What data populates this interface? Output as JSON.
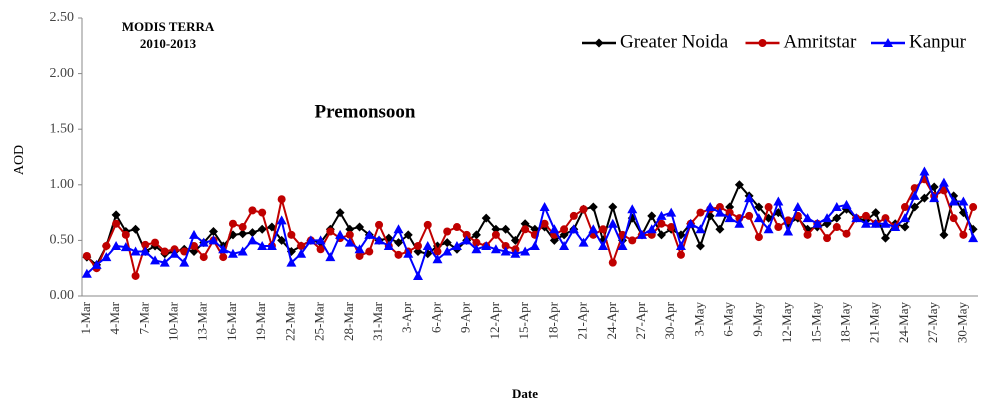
{
  "chart_data": {
    "type": "line",
    "title": "MODIS TERRA",
    "subtitle": "2010-2013",
    "annotation": "Premonsoon",
    "x_label": "Date",
    "y_label": "AOD",
    "legend": "top-right",
    "grid": false,
    "ylim": [
      0,
      2.5
    ],
    "yticks": [
      {
        "value": 0,
        "label": "0.00"
      },
      {
        "value": 0.5,
        "label": "0.50"
      },
      {
        "value": 1,
        "label": "1.00"
      },
      {
        "value": 1.5,
        "label": "1.50"
      },
      {
        "value": 2,
        "label": "2.00"
      },
      {
        "value": 2.5,
        "label": "2.50"
      }
    ],
    "categories": [
      "1-Mar",
      null,
      null,
      "4-Mar",
      null,
      null,
      "7-Mar",
      null,
      null,
      "10-Mar",
      null,
      null,
      "13-Mar",
      null,
      null,
      "16-Mar",
      null,
      null,
      "19-Mar",
      null,
      null,
      "22-Mar",
      null,
      null,
      "25-Mar",
      null,
      null,
      "28-Mar",
      null,
      null,
      "31-Mar",
      null,
      null,
      "3-Apr",
      null,
      null,
      "6-Apr",
      null,
      null,
      "9-Apr",
      null,
      null,
      "12-Apr",
      null,
      null,
      "15-Apr",
      null,
      null,
      "18-Apr",
      null,
      null,
      "21-Apr",
      null,
      null,
      "24-Apr",
      null,
      null,
      "27-Apr",
      null,
      null,
      "30-Apr",
      null,
      null,
      "3-May",
      null,
      null,
      "6-May",
      null,
      null,
      "9-May",
      null,
      null,
      "12-May",
      null,
      null,
      "15-May",
      null,
      null,
      "18-May",
      null,
      null,
      "21-May",
      null,
      null,
      "24-May",
      null,
      null,
      "27-May",
      null,
      null,
      "30-May",
      null
    ],
    "series": [
      {
        "name": "Greater Noida",
        "color": "#000000",
        "marker": "diamond",
        "values": [
          0.35,
          0.28,
          0.45,
          0.73,
          0.58,
          0.6,
          0.4,
          0.45,
          0.38,
          0.4,
          0.42,
          0.4,
          0.48,
          0.58,
          0.45,
          0.55,
          0.56,
          0.57,
          0.6,
          0.62,
          0.5,
          0.4,
          0.45,
          0.5,
          0.48,
          0.6,
          0.75,
          0.6,
          0.62,
          0.55,
          0.5,
          0.52,
          0.48,
          0.55,
          0.4,
          0.38,
          0.45,
          0.48,
          0.42,
          0.5,
          0.55,
          0.7,
          0.6,
          0.6,
          0.5,
          0.65,
          0.6,
          0.62,
          0.5,
          0.55,
          0.6,
          0.78,
          0.8,
          0.5,
          0.8,
          0.5,
          0.7,
          0.55,
          0.72,
          0.55,
          0.6,
          0.55,
          0.65,
          0.45,
          0.72,
          0.6,
          0.8,
          1.0,
          0.9,
          0.8,
          0.7,
          0.75,
          0.65,
          0.7,
          0.6,
          0.62,
          0.65,
          0.7,
          0.78,
          0.7,
          0.68,
          0.75,
          0.52,
          0.65,
          0.62,
          0.8,
          0.88,
          0.98,
          0.55,
          0.9,
          0.75,
          0.6
        ]
      },
      {
        "name": "Amritstar",
        "color": "#c00000",
        "marker": "circle",
        "values": [
          0.36,
          0.25,
          0.45,
          0.65,
          0.55,
          0.18,
          0.46,
          0.48,
          0.4,
          0.42,
          0.4,
          0.45,
          0.35,
          0.5,
          0.35,
          0.65,
          0.62,
          0.77,
          0.75,
          0.45,
          0.87,
          0.55,
          0.45,
          0.5,
          0.42,
          0.58,
          0.52,
          0.55,
          0.36,
          0.4,
          0.64,
          0.45,
          0.37,
          0.4,
          0.45,
          0.64,
          0.4,
          0.58,
          0.62,
          0.55,
          0.48,
          0.45,
          0.55,
          0.45,
          0.42,
          0.6,
          0.55,
          0.65,
          0.55,
          0.6,
          0.72,
          0.78,
          0.55,
          0.6,
          0.3,
          0.55,
          0.5,
          0.55,
          0.55,
          0.65,
          0.62,
          0.37,
          0.65,
          0.75,
          0.78,
          0.8,
          0.75,
          0.7,
          0.72,
          0.53,
          0.8,
          0.62,
          0.68,
          0.72,
          0.55,
          0.65,
          0.52,
          0.62,
          0.56,
          0.7,
          0.72,
          0.65,
          0.7,
          0.62,
          0.8,
          0.97,
          1.05,
          0.9,
          0.95,
          0.7,
          0.55,
          0.8
        ]
      },
      {
        "name": "Kanpur",
        "color": "#0000ff",
        "marker": "triangle",
        "values": [
          0.2,
          0.28,
          0.35,
          0.45,
          0.44,
          0.4,
          0.4,
          0.32,
          0.3,
          0.38,
          0.3,
          0.55,
          0.48,
          0.5,
          0.42,
          0.38,
          0.4,
          0.5,
          0.45,
          0.45,
          0.68,
          0.3,
          0.38,
          0.5,
          0.5,
          0.35,
          0.55,
          0.48,
          0.42,
          0.55,
          0.5,
          0.45,
          0.6,
          0.38,
          0.18,
          0.45,
          0.33,
          0.4,
          0.45,
          0.5,
          0.42,
          0.45,
          0.42,
          0.4,
          0.38,
          0.4,
          0.45,
          0.8,
          0.6,
          0.45,
          0.6,
          0.48,
          0.6,
          0.45,
          0.65,
          0.45,
          0.78,
          0.55,
          0.6,
          0.72,
          0.75,
          0.45,
          0.65,
          0.6,
          0.8,
          0.75,
          0.7,
          0.65,
          0.88,
          0.7,
          0.6,
          0.85,
          0.58,
          0.8,
          0.7,
          0.65,
          0.7,
          0.8,
          0.82,
          0.7,
          0.65,
          0.65,
          0.65,
          0.62,
          0.7,
          0.9,
          1.12,
          0.88,
          1.02,
          0.85,
          0.85,
          0.52
        ]
      }
    ]
  }
}
